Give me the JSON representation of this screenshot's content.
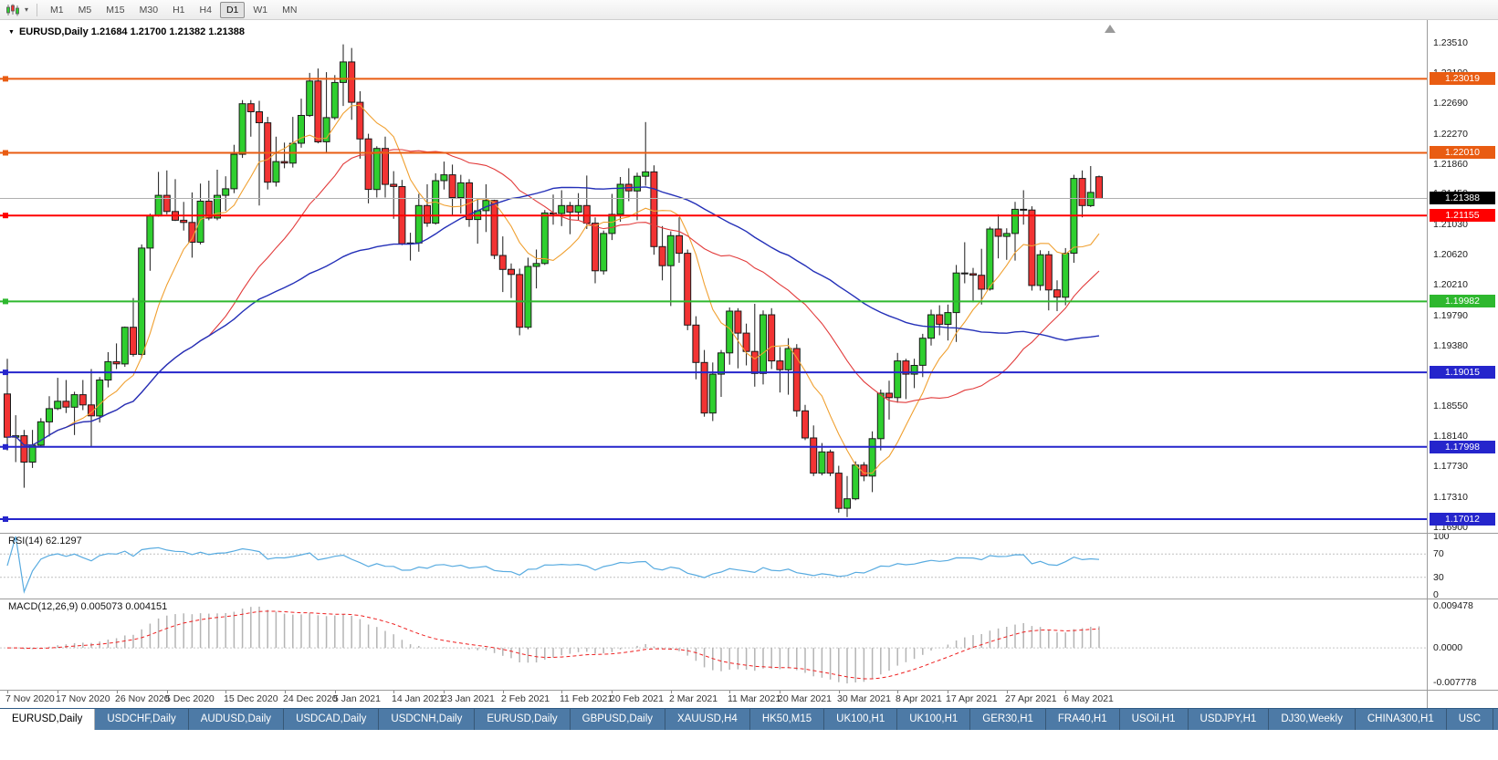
{
  "toolbar": {
    "caret": "▾",
    "timeframes": [
      {
        "label": "M1",
        "active": false
      },
      {
        "label": "M5",
        "active": false
      },
      {
        "label": "M15",
        "active": false
      },
      {
        "label": "M30",
        "active": false
      },
      {
        "label": "H1",
        "active": false
      },
      {
        "label": "H4",
        "active": false
      },
      {
        "label": "D1",
        "active": true
      },
      {
        "label": "W1",
        "active": false
      },
      {
        "label": "MN",
        "active": false
      }
    ]
  },
  "chart": {
    "title_marker": "▼",
    "title": "EURUSD,Daily 1.21684 1.21700 1.21382 1.21388",
    "price_axis_labels": [
      "1.23510",
      "1.23100",
      "1.22690",
      "1.22270",
      "1.21860",
      "1.21450",
      "1.21030",
      "1.20620",
      "1.20210",
      "1.19790",
      "1.19380",
      "1.18550",
      "1.18140",
      "1.17730",
      "1.17310",
      "1.16900"
    ],
    "hlines": [
      {
        "price": 1.23019,
        "label": "1.23019",
        "color": "#e95c12",
        "width": 2
      },
      {
        "price": 1.2201,
        "label": "1.22010",
        "color": "#e95c12",
        "width": 2
      },
      {
        "price": 1.21155,
        "label": "1.21155",
        "color": "#ff0000",
        "width": 2
      },
      {
        "price": 1.19982,
        "label": "1.19982",
        "color": "#2eb82e",
        "width": 2
      },
      {
        "price": 1.19015,
        "label": "1.19015",
        "color": "#2525cc",
        "width": 2
      },
      {
        "price": 1.17998,
        "label": "1.17998",
        "color": "#2525cc",
        "width": 2
      },
      {
        "price": 1.17012,
        "label": "1.17012",
        "color": "#2525cc",
        "width": 2
      }
    ],
    "bid": {
      "price": 1.21388,
      "label": "1.21388",
      "box_color": "#000000",
      "line_color": "#b0b0b0"
    }
  },
  "rsi": {
    "title": "RSI(14) 62.1297",
    "period": 14,
    "line_color": "#58abe0",
    "levels": [
      {
        "value": 100,
        "label": "100",
        "dashed": false
      },
      {
        "value": 70,
        "label": "70",
        "dashed": true
      },
      {
        "value": 30,
        "label": "30",
        "dashed": true
      },
      {
        "value": 0,
        "label": "0",
        "dashed": false
      }
    ]
  },
  "macd": {
    "title": "MACD(12,26,9) 0.005073 0.004151",
    "fast": 12,
    "slow": 26,
    "signal": 9,
    "hist_color": "#b4b4b4",
    "signal_color": "#ee2020",
    "axis_labels": [
      {
        "value": 0.009478,
        "label": "0.009478"
      },
      {
        "value": 0,
        "label": "0.0000"
      },
      {
        "value": -0.007778,
        "label": "-0.007778"
      }
    ]
  },
  "time_axis": [
    {
      "label": "7 Nov 2020",
      "bar": 0
    },
    {
      "label": "17 Nov 2020",
      "bar": 6
    },
    {
      "label": "26 Nov 2020",
      "bar": 13
    },
    {
      "label": "5 Dec 2020",
      "bar": 19
    },
    {
      "label": "15 Dec 2020",
      "bar": 26
    },
    {
      "label": "24 Dec 2020",
      "bar": 33
    },
    {
      "label": "5 Jan 2021",
      "bar": 39
    },
    {
      "label": "14 Jan 2021",
      "bar": 46
    },
    {
      "label": "23 Jan 2021",
      "bar": 52
    },
    {
      "label": "2 Feb 2021",
      "bar": 59
    },
    {
      "label": "11 Feb 2021",
      "bar": 66
    },
    {
      "label": "20 Feb 2021",
      "bar": 72
    },
    {
      "label": "2 Mar 2021",
      "bar": 79
    },
    {
      "label": "11 Mar 2021",
      "bar": 86
    },
    {
      "label": "20 Mar 2021",
      "bar": 92
    },
    {
      "label": "30 Mar 2021",
      "bar": 99
    },
    {
      "label": "8 Apr 2021",
      "bar": 106
    },
    {
      "label": "17 Apr 2021",
      "bar": 112
    },
    {
      "label": "27 Apr 2021",
      "bar": 119
    },
    {
      "label": "6 May 2021",
      "bar": 126
    }
  ],
  "tabs": [
    {
      "label": "EURUSD,Daily",
      "active": true
    },
    {
      "label": "USDCHF,Daily",
      "active": false
    },
    {
      "label": "AUDUSD,Daily",
      "active": false
    },
    {
      "label": "USDCAD,Daily",
      "active": false
    },
    {
      "label": "USDCNH,Daily",
      "active": false
    },
    {
      "label": "EURUSD,Daily",
      "active": false
    },
    {
      "label": "GBPUSD,Daily",
      "active": false
    },
    {
      "label": "XAUUSD,H4",
      "active": false
    },
    {
      "label": "HK50,M15",
      "active": false
    },
    {
      "label": "UK100,H1",
      "active": false
    },
    {
      "label": "UK100,H1",
      "active": false
    },
    {
      "label": "GER30,H1",
      "active": false
    },
    {
      "label": "FRA40,H1",
      "active": false
    },
    {
      "label": "USOil,H1",
      "active": false
    },
    {
      "label": "USDJPY,H1",
      "active": false
    },
    {
      "label": "DJ30,Weekly",
      "active": false
    },
    {
      "label": "CHINA300,H1",
      "active": false
    },
    {
      "label": "USC",
      "active": false
    }
  ],
  "chart_data": {
    "type": "candlestick",
    "symbol": "EURUSD",
    "timeframe": "Daily",
    "price_range": {
      "top": 1.2351,
      "bottom": 1.169
    },
    "up_color": "#2fcf2f",
    "down_color": "#f23333",
    "up_border": "#1a1a1a",
    "down_border": "#1a1a1a",
    "ma": [
      {
        "period": 8,
        "color": "#f0a030",
        "width": 1.1
      },
      {
        "period": 25,
        "color": "#e23b3b",
        "width": 1.1
      },
      {
        "period": 50,
        "color": "#2430b8",
        "width": 1.4
      }
    ],
    "ohlc": [
      [
        1.1872,
        1.192,
        1.1795,
        1.1813
      ],
      [
        1.1813,
        1.1843,
        1.1779,
        1.1815
      ],
      [
        1.1815,
        1.1823,
        1.1744,
        1.1779
      ],
      [
        1.1779,
        1.1823,
        1.1771,
        1.1802
      ],
      [
        1.1802,
        1.1839,
        1.1799,
        1.1834
      ],
      [
        1.1834,
        1.1869,
        1.1814,
        1.1852
      ],
      [
        1.1852,
        1.1894,
        1.185,
        1.1862
      ],
      [
        1.1862,
        1.1891,
        1.1846,
        1.1854
      ],
      [
        1.1854,
        1.1875,
        1.1816,
        1.1871
      ],
      [
        1.1871,
        1.1891,
        1.185,
        1.1857
      ],
      [
        1.1857,
        1.1906,
        1.18,
        1.1842
      ],
      [
        1.1842,
        1.1895,
        1.1833,
        1.1891
      ],
      [
        1.1891,
        1.1929,
        1.1881,
        1.1916
      ],
      [
        1.1916,
        1.1941,
        1.1906,
        1.1913
      ],
      [
        1.1913,
        1.1964,
        1.1909,
        1.1963
      ],
      [
        1.1963,
        1.2003,
        1.1923,
        1.1926
      ],
      [
        1.1926,
        1.2076,
        1.1921,
        1.2071
      ],
      [
        1.2071,
        1.2118,
        1.204,
        1.2115
      ],
      [
        1.2115,
        1.2175,
        1.2114,
        1.2143
      ],
      [
        1.2143,
        1.2177,
        1.2117,
        1.2121
      ],
      [
        1.2121,
        1.2165,
        1.2108,
        1.2109
      ],
      [
        1.2109,
        1.2134,
        1.2095,
        1.2106
      ],
      [
        1.2106,
        1.2147,
        1.2058,
        1.2079
      ],
      [
        1.2079,
        1.2159,
        1.2076,
        1.2135
      ],
      [
        1.2135,
        1.2163,
        1.2109,
        1.2112
      ],
      [
        1.2112,
        1.2178,
        1.2109,
        1.2143
      ],
      [
        1.2143,
        1.2169,
        1.2122,
        1.2152
      ],
      [
        1.2152,
        1.2212,
        1.2146,
        1.2199
      ],
      [
        1.2199,
        1.2273,
        1.2194,
        1.2268
      ],
      [
        1.2268,
        1.2273,
        1.2223,
        1.2257
      ],
      [
        1.2257,
        1.2272,
        1.2129,
        1.2242
      ],
      [
        1.2242,
        1.225,
        1.2151,
        1.2161
      ],
      [
        1.2161,
        1.2223,
        1.2155,
        1.2189
      ],
      [
        1.2189,
        1.2215,
        1.218,
        1.2187
      ],
      [
        1.2187,
        1.225,
        1.2181,
        1.2214
      ],
      [
        1.2214,
        1.2275,
        1.2208,
        1.2252
      ],
      [
        1.2252,
        1.231,
        1.225,
        1.2299
      ],
      [
        1.2299,
        1.2316,
        1.2214,
        1.2216
      ],
      [
        1.2216,
        1.2311,
        1.22,
        1.2249
      ],
      [
        1.2249,
        1.2307,
        1.2246,
        1.2297
      ],
      [
        1.2297,
        1.2349,
        1.2265,
        1.2325
      ],
      [
        1.2325,
        1.2344,
        1.2246,
        1.227
      ],
      [
        1.227,
        1.2285,
        1.2193,
        1.222
      ],
      [
        1.222,
        1.2227,
        1.2132,
        1.2151
      ],
      [
        1.2151,
        1.221,
        1.214,
        1.2207
      ],
      [
        1.2207,
        1.2223,
        1.214,
        1.2158
      ],
      [
        1.2158,
        1.2176,
        1.2111,
        1.2155
      ],
      [
        1.2155,
        1.2164,
        1.2075,
        1.2077
      ],
      [
        1.2077,
        1.2092,
        1.2054,
        1.2078
      ],
      [
        1.2078,
        1.2145,
        1.2066,
        1.2129
      ],
      [
        1.2129,
        1.2158,
        1.21,
        1.2105
      ],
      [
        1.2105,
        1.2173,
        1.2103,
        1.2163
      ],
      [
        1.2163,
        1.2189,
        1.2151,
        1.2171
      ],
      [
        1.2171,
        1.2185,
        1.2116,
        1.214
      ],
      [
        1.214,
        1.2171,
        1.2118,
        1.216
      ],
      [
        1.216,
        1.2165,
        1.21,
        1.211
      ],
      [
        1.211,
        1.2139,
        1.2077,
        1.2122
      ],
      [
        1.2122,
        1.2158,
        1.2093,
        1.2136
      ],
      [
        1.2136,
        1.2137,
        1.2056,
        1.2061
      ],
      [
        1.2061,
        1.2087,
        1.2011,
        1.2042
      ],
      [
        1.2042,
        1.205,
        1.2003,
        1.2035
      ],
      [
        1.2035,
        1.2043,
        1.1952,
        1.1963
      ],
      [
        1.1963,
        1.2058,
        1.196,
        1.2046
      ],
      [
        1.2046,
        1.2069,
        1.2016,
        1.205
      ],
      [
        1.205,
        1.2123,
        1.2048,
        1.2119
      ],
      [
        1.2119,
        1.2144,
        1.2103,
        1.2118
      ],
      [
        1.2118,
        1.215,
        1.2101,
        1.2129
      ],
      [
        1.2129,
        1.2134,
        1.209,
        1.212
      ],
      [
        1.212,
        1.2146,
        1.2109,
        1.2129
      ],
      [
        1.2129,
        1.217,
        1.2097,
        1.2105
      ],
      [
        1.2105,
        1.2113,
        1.2023,
        1.204
      ],
      [
        1.204,
        1.2095,
        1.2035,
        1.2091
      ],
      [
        1.2091,
        1.2145,
        1.2082,
        1.2117
      ],
      [
        1.2117,
        1.2168,
        1.2107,
        1.2158
      ],
      [
        1.2158,
        1.218,
        1.2135,
        1.2149
      ],
      [
        1.2149,
        1.2174,
        1.2109,
        1.2169
      ],
      [
        1.2169,
        1.2243,
        1.2156,
        1.2175
      ],
      [
        1.2175,
        1.2184,
        1.2062,
        1.2073
      ],
      [
        1.2073,
        1.2101,
        1.2027,
        1.2047
      ],
      [
        1.2047,
        1.2094,
        1.1992,
        1.2088
      ],
      [
        1.2088,
        1.2113,
        1.2051,
        1.2064
      ],
      [
        1.2064,
        1.2069,
        1.1959,
        1.1966
      ],
      [
        1.1966,
        1.1978,
        1.1892,
        1.1915
      ],
      [
        1.1915,
        1.1932,
        1.1841,
        1.1846
      ],
      [
        1.1846,
        1.1915,
        1.1835,
        1.1899
      ],
      [
        1.1899,
        1.1932,
        1.1868,
        1.1928
      ],
      [
        1.1928,
        1.199,
        1.1912,
        1.1985
      ],
      [
        1.1985,
        1.1989,
        1.1907,
        1.1955
      ],
      [
        1.1955,
        1.1968,
        1.1911,
        1.193
      ],
      [
        1.193,
        1.1995,
        1.1882,
        1.19
      ],
      [
        1.19,
        1.1986,
        1.1885,
        1.198
      ],
      [
        1.198,
        1.1989,
        1.1906,
        1.1917
      ],
      [
        1.1917,
        1.1936,
        1.1874,
        1.1905
      ],
      [
        1.1905,
        1.1948,
        1.1871,
        1.1934
      ],
      [
        1.1934,
        1.194,
        1.1841,
        1.1849
      ],
      [
        1.1849,
        1.1857,
        1.1809,
        1.1812
      ],
      [
        1.1812,
        1.1829,
        1.176,
        1.1764
      ],
      [
        1.1764,
        1.1805,
        1.1761,
        1.1793
      ],
      [
        1.1793,
        1.1796,
        1.176,
        1.1764
      ],
      [
        1.1764,
        1.1774,
        1.171,
        1.1716
      ],
      [
        1.1716,
        1.176,
        1.1704,
        1.1729
      ],
      [
        1.1729,
        1.178,
        1.1727,
        1.1775
      ],
      [
        1.1775,
        1.1779,
        1.1753,
        1.176
      ],
      [
        1.176,
        1.1821,
        1.1738,
        1.1811
      ],
      [
        1.1811,
        1.1878,
        1.1795,
        1.1873
      ],
      [
        1.1873,
        1.189,
        1.1837,
        1.1867
      ],
      [
        1.1867,
        1.1928,
        1.186,
        1.1917
      ],
      [
        1.1917,
        1.192,
        1.1865,
        1.1899
      ],
      [
        1.1899,
        1.192,
        1.188,
        1.1911
      ],
      [
        1.1911,
        1.1954,
        1.1895,
        1.1948
      ],
      [
        1.1948,
        1.1987,
        1.1938,
        1.198
      ],
      [
        1.198,
        1.1993,
        1.1952,
        1.1967
      ],
      [
        1.1967,
        1.1994,
        1.1945,
        1.1983
      ],
      [
        1.1983,
        1.2048,
        1.1943,
        1.2037
      ],
      [
        1.2037,
        1.2079,
        1.2023,
        1.2036
      ],
      [
        1.2036,
        1.2044,
        1.1997,
        1.2034
      ],
      [
        1.2034,
        1.207,
        1.1994,
        1.2015
      ],
      [
        1.2015,
        1.21,
        1.2013,
        1.2097
      ],
      [
        1.2097,
        1.2117,
        1.2057,
        1.2087
      ],
      [
        1.2087,
        1.2098,
        1.2055,
        1.2091
      ],
      [
        1.2091,
        1.2134,
        1.2054,
        1.2124
      ],
      [
        1.2124,
        1.215,
        1.2103,
        1.2123
      ],
      [
        1.2123,
        1.2128,
        1.2013,
        1.202
      ],
      [
        1.202,
        1.2068,
        1.2013,
        1.2062
      ],
      [
        1.2062,
        1.2067,
        1.1986,
        1.2014
      ],
      [
        1.2014,
        1.2027,
        1.1985,
        1.2004
      ],
      [
        1.2004,
        1.2071,
        1.1993,
        1.2064
      ],
      [
        1.2064,
        1.2171,
        1.2051,
        1.2166
      ],
      [
        1.2166,
        1.2177,
        1.2113,
        1.2129
      ],
      [
        1.2129,
        1.2183,
        1.2127,
        1.2147
      ],
      [
        1.21684,
        1.217,
        1.21382,
        1.21388
      ]
    ]
  }
}
